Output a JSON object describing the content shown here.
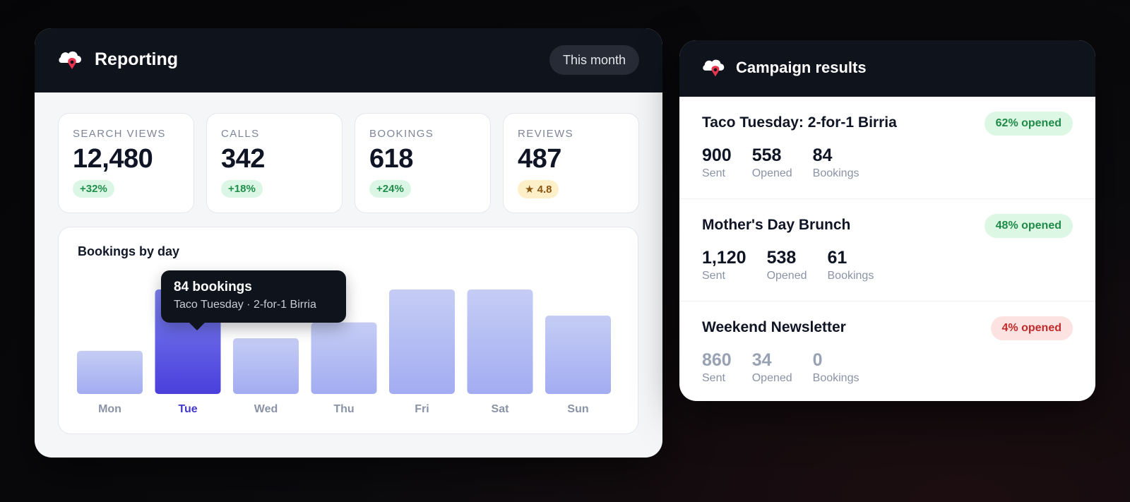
{
  "reporting": {
    "title": "Reporting",
    "period_button": "This month",
    "stats": [
      {
        "label": "SEARCH VIEWS",
        "value": "12,480",
        "badge": "+32%",
        "badge_tone": "green"
      },
      {
        "label": "CALLS",
        "value": "342",
        "badge": "+18%",
        "badge_tone": "green"
      },
      {
        "label": "BOOKINGS",
        "value": "618",
        "badge": "+24%",
        "badge_tone": "green"
      },
      {
        "label": "REVIEWS",
        "value": "487",
        "badge": "★ 4.8",
        "badge_tone": "amber"
      }
    ],
    "chart_title": "Bookings by day",
    "tooltip": {
      "title": "84 bookings",
      "subtitle": "Taco Tuesday · 2-for-1 Birria"
    }
  },
  "chart_data": {
    "type": "bar",
    "title": "Bookings by day",
    "categories": [
      "Mon",
      "Tue",
      "Wed",
      "Thu",
      "Fri",
      "Sat",
      "Sun"
    ],
    "values": [
      38,
      92,
      49,
      63,
      92,
      92,
      69
    ],
    "highlighted": "Tue",
    "colors": {
      "bar_top": "#c5cdf5",
      "bar_bottom": "#a3acf1",
      "highlight_top": "#7b80ee",
      "highlight_bottom": "#4a3fdc",
      "label": "#8a93a5",
      "highlight_label": "#4338ca"
    }
  },
  "campaigns": {
    "title": "Campaign results",
    "items": [
      {
        "name": "Taco Tuesday: 2-for-1 Birria",
        "badge": "62% opened",
        "tone": "good",
        "metrics": [
          {
            "value": "900",
            "label": "Sent"
          },
          {
            "value": "558",
            "label": "Opened"
          },
          {
            "value": "84",
            "label": "Bookings"
          }
        ]
      },
      {
        "name": "Mother's Day Brunch",
        "badge": "48% opened",
        "tone": "good",
        "metrics": [
          {
            "value": "1,120",
            "label": "Sent"
          },
          {
            "value": "538",
            "label": "Opened"
          },
          {
            "value": "61",
            "label": "Bookings"
          }
        ]
      },
      {
        "name": "Weekend Newsletter",
        "badge": "4% opened",
        "tone": "bad",
        "metrics": [
          {
            "value": "860",
            "label": "Sent"
          },
          {
            "value": "34",
            "label": "Opened"
          },
          {
            "value": "0",
            "label": "Bookings"
          }
        ]
      }
    ]
  },
  "icons": {
    "logo": "map-pin-cloud-icon"
  }
}
